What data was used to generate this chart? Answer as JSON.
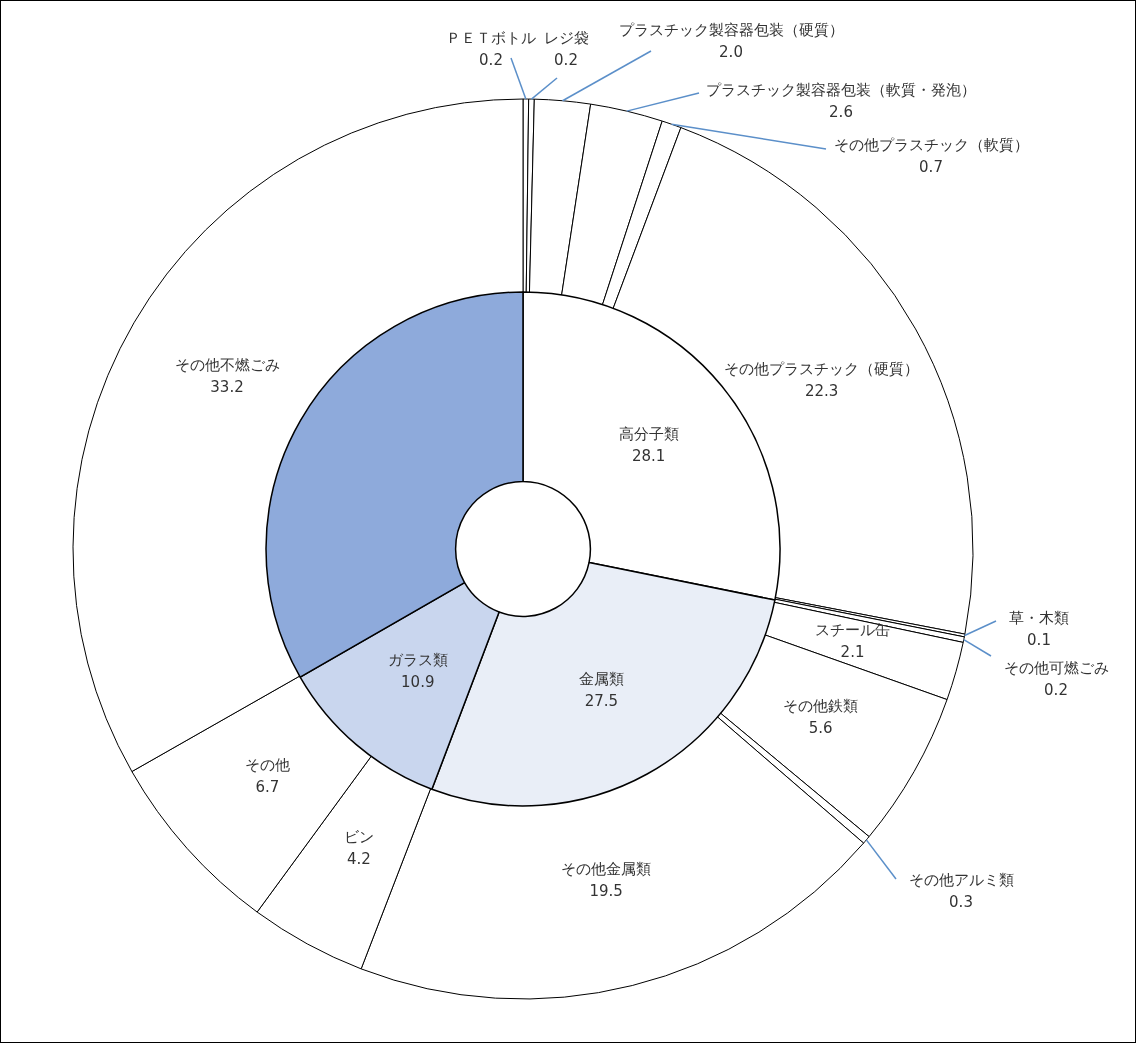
{
  "chart_data": [
    {
      "type": "donut",
      "categories": [
        "高分子類",
        "金属類",
        "ガラス類",
        null
      ],
      "values": [
        28.1,
        27.5,
        10.9,
        33.2
      ],
      "colors": [
        "#ffffff",
        "#e9eef7",
        "#c9d6ee",
        "#8eaadb"
      ],
      "value_labels": [
        "28.1",
        "27.5",
        "10.9",
        null
      ]
    },
    {
      "type": "donut",
      "categories": [
        "ＰＥＴボトル",
        "レジ袋",
        "プラスチック製容器包装（硬質）",
        "プラスチック製容器包装（軟質・発泡）",
        "その他プラスチック（軟質）",
        "その他プラスチック（硬質）",
        "草・木類",
        "その他可燃ごみ",
        "スチール缶",
        "その他鉄類",
        "その他アルミ類",
        "その他金属類",
        "ビン",
        "その他",
        "その他不燃ごみ"
      ],
      "values": [
        0.2,
        0.2,
        2.0,
        2.6,
        0.7,
        22.3,
        0.1,
        0.2,
        2.1,
        5.6,
        0.3,
        19.5,
        4.2,
        6.7,
        33.2
      ],
      "colors": [
        "#ffffff",
        "#ffffff",
        "#ffffff",
        "#ffffff",
        "#ffffff",
        "#ffffff",
        "#ffffff",
        "#ffffff",
        "#ffffff",
        "#ffffff",
        "#ffffff",
        "#ffffff",
        "#ffffff",
        "#ffffff",
        "#ffffff"
      ],
      "value_labels": [
        "0.2",
        "0.2",
        "2.0",
        "2.6",
        "0.7",
        "22.3",
        "0.1",
        "0.2",
        "2.1",
        "5.6",
        "0.3",
        "19.5",
        "4.2",
        "6.7",
        "33.2"
      ]
    }
  ]
}
